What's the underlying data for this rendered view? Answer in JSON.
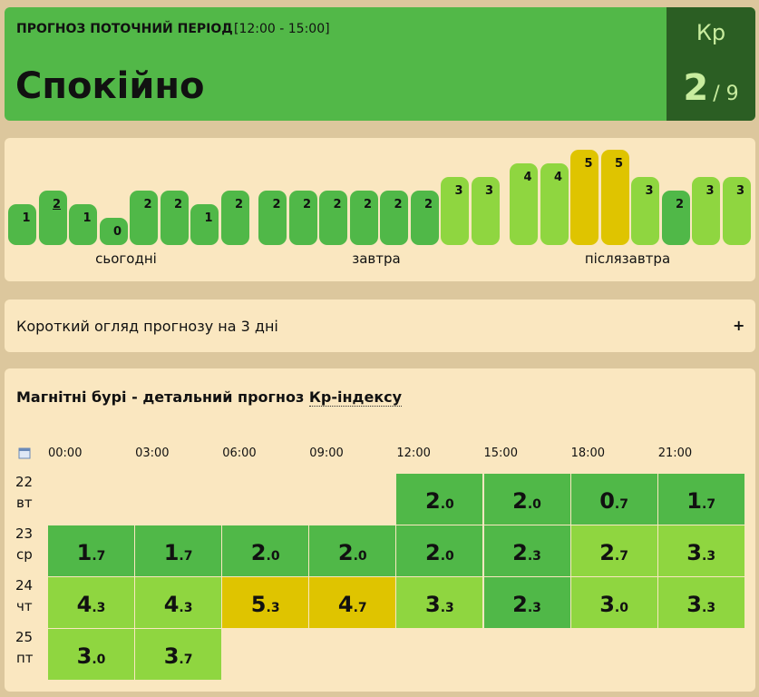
{
  "header": {
    "label": "ПРОГНОЗ ПОТОЧНИЙ ПЕРІОД",
    "period": "[12:00 - 15:00]",
    "status": "Спокійно",
    "kp_label": "Кр",
    "kp_value": 2,
    "kp_scale": "/ 9"
  },
  "level_colors": [
    "#50b848",
    "#50b848",
    "#50b848",
    "#8fd640",
    "#8fd640",
    "#dfc400"
  ],
  "forecast": {
    "current": {
      "group": 0,
      "index": 1
    },
    "groups": [
      {
        "label": "сьогодні",
        "values": [
          1,
          2,
          1,
          0,
          2,
          2,
          1,
          2
        ]
      },
      {
        "label": "завтра",
        "values": [
          2,
          2,
          2,
          2,
          2,
          2,
          3,
          3
        ]
      },
      {
        "label": "післязавтра",
        "values": [
          4,
          4,
          5,
          5,
          3,
          2,
          3,
          3
        ]
      }
    ]
  },
  "overview": {
    "title": "Короткий огляд прогнозу на 3 дні",
    "toggle": "+"
  },
  "table": {
    "title": "Магнітні бурі - детальний прогноз ",
    "title_link": "Кр-індексу",
    "times": [
      "00:00",
      "03:00",
      "06:00",
      "09:00",
      "12:00",
      "15:00",
      "18:00",
      "21:00"
    ],
    "rows": [
      {
        "day": "22",
        "weekday": "вт",
        "cells": [
          null,
          null,
          null,
          null,
          {
            "whole": "2",
            "fraction": ".0"
          },
          {
            "whole": "2",
            "fraction": ".0"
          },
          {
            "whole": "0",
            "fraction": ".7"
          },
          {
            "whole": "1",
            "fraction": ".7"
          }
        ]
      },
      {
        "day": "23",
        "weekday": "ср",
        "cells": [
          {
            "whole": "1",
            "fraction": ".7"
          },
          {
            "whole": "1",
            "fraction": ".7"
          },
          {
            "whole": "2",
            "fraction": ".0"
          },
          {
            "whole": "2",
            "fraction": ".0"
          },
          {
            "whole": "2",
            "fraction": ".0"
          },
          {
            "whole": "2",
            "fraction": ".3"
          },
          {
            "whole": "2",
            "fraction": ".7"
          },
          {
            "whole": "3",
            "fraction": ".3"
          }
        ]
      },
      {
        "day": "24",
        "weekday": "чт",
        "cells": [
          {
            "whole": "4",
            "fraction": ".3"
          },
          {
            "whole": "4",
            "fraction": ".3"
          },
          {
            "whole": "5",
            "fraction": ".3"
          },
          {
            "whole": "4",
            "fraction": ".7"
          },
          {
            "whole": "3",
            "fraction": ".3"
          },
          {
            "whole": "2",
            "fraction": ".3"
          },
          {
            "whole": "3",
            "fraction": ".0"
          },
          {
            "whole": "3",
            "fraction": ".3"
          }
        ]
      },
      {
        "day": "25",
        "weekday": "пт",
        "cells": [
          {
            "whole": "3",
            "fraction": ".0"
          },
          {
            "whole": "3",
            "fraction": ".7"
          },
          null,
          null,
          null,
          null,
          null,
          null
        ]
      }
    ]
  }
}
